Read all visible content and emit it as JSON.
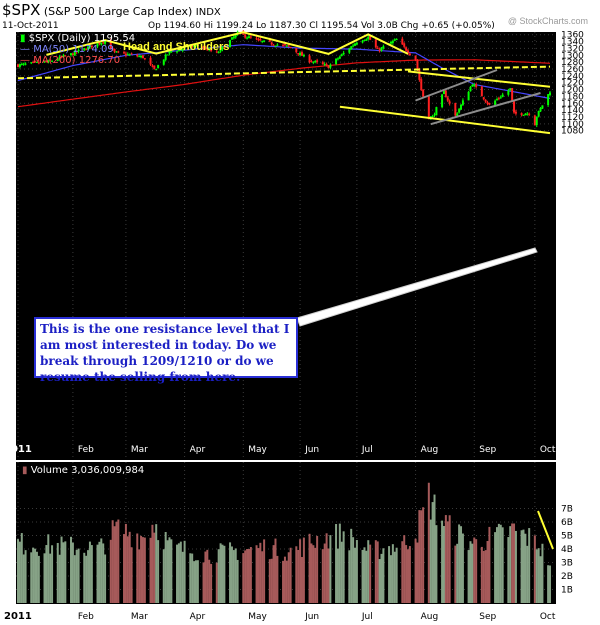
{
  "header": {
    "ticker": "$SPX",
    "name": "(S&P 500 Large Cap Index)",
    "exchange": "INDX",
    "date": "11-Oct-2011",
    "quote": "Op 1194.60  Hi 1199.24  Lo 1187.30  Cl 1195.54  Vol 3.0B  Chg +0.65 (+0.05%)",
    "watermark": "@ StockCharts.com"
  },
  "legend": {
    "price": "$SPX (Daily) 1195.54",
    "ma50": "MA(50) 1174.09",
    "ma200": "MA(200) 1276.70"
  },
  "annotations": {
    "pattern": "Head and Shoulders",
    "note": "This is the one resistance level that I am most interested in today. Do we break through 1209/1210 or do we resume the selling from here."
  },
  "volume_title": "Volume 3,036,009,984",
  "colors": {
    "background": "#000000",
    "up": "#00ff00",
    "down": "#ff2020",
    "ma50": "#4646ff",
    "ma200": "#e01010",
    "trendline": "#ffff33",
    "channel": "#8c8c8c",
    "volume_up": "#86a286",
    "volume_down": "#a65a5a"
  },
  "chart_data": [
    {
      "type": "line",
      "title": "$SPX (S&P 500 Large Cap Index) INDX",
      "ylim": [
        1060,
        1370
      ],
      "yticks": [
        1080,
        1100,
        1120,
        1140,
        1160,
        1180,
        1200,
        1220,
        1240,
        1260,
        1280,
        1300,
        1320,
        1340,
        1360
      ],
      "xlim": [
        "2011-01-03",
        "2011-10-11"
      ],
      "xticks": [
        {
          "label": "2011",
          "date": "2011-01-03"
        },
        {
          "label": "Feb",
          "date": "2011-02-01"
        },
        {
          "label": "Mar",
          "date": "2011-03-01"
        },
        {
          "label": "Apr",
          "date": "2011-04-01"
        },
        {
          "label": "May",
          "date": "2011-05-02"
        },
        {
          "label": "Jun",
          "date": "2011-06-01"
        },
        {
          "label": "Jul",
          "date": "2011-07-01"
        },
        {
          "label": "Aug",
          "date": "2011-08-01"
        },
        {
          "label": "Sep",
          "date": "2011-09-01"
        },
        {
          "label": "Oct",
          "date": "2011-10-03"
        }
      ],
      "grid": true,
      "series": [
        {
          "name": "$SPX (Daily) 1195.54",
          "points": [
            [
              "2011-01-03",
              1271
            ],
            [
              "2011-01-19",
              1281
            ],
            [
              "2011-02-01",
              1305
            ],
            [
              "2011-02-18",
              1343
            ],
            [
              "2011-02-23",
              1308
            ],
            [
              "2011-03-10",
              1295
            ],
            [
              "2011-03-16",
              1257
            ],
            [
              "2011-03-24",
              1310
            ],
            [
              "2011-04-08",
              1329
            ],
            [
              "2011-04-18",
              1305
            ],
            [
              "2011-04-29",
              1364
            ],
            [
              "2011-05-10",
              1342
            ],
            [
              "2011-05-26",
              1325
            ],
            [
              "2011-06-06",
              1285
            ],
            [
              "2011-06-16",
              1267
            ],
            [
              "2011-07-01",
              1340
            ],
            [
              "2011-07-07",
              1353
            ],
            [
              "2011-07-12",
              1314
            ],
            [
              "2011-07-22",
              1346
            ],
            [
              "2011-08-01",
              1287
            ],
            [
              "2011-08-04",
              1200
            ],
            [
              "2011-08-08",
              1119
            ],
            [
              "2011-08-10",
              1120
            ],
            [
              "2011-08-16",
              1193
            ],
            [
              "2011-08-22",
              1123
            ],
            [
              "2011-08-31",
              1218
            ],
            [
              "2011-09-09",
              1154
            ],
            [
              "2011-09-20",
              1202
            ],
            [
              "2011-09-22",
              1129
            ],
            [
              "2011-09-30",
              1131
            ],
            [
              "2011-10-03",
              1099
            ],
            [
              "2011-10-04",
              1123
            ],
            [
              "2011-10-07",
              1155
            ],
            [
              "2011-10-11",
              1195.54
            ]
          ]
        },
        {
          "name": "MA(50) 1174.09",
          "points": [
            [
              "2011-01-03",
              1226
            ],
            [
              "2011-02-01",
              1270
            ],
            [
              "2011-03-01",
              1300
            ],
            [
              "2011-04-01",
              1315
            ],
            [
              "2011-05-02",
              1331
            ],
            [
              "2011-06-01",
              1321
            ],
            [
              "2011-07-01",
              1318
            ],
            [
              "2011-08-01",
              1307
            ],
            [
              "2011-08-15",
              1263
            ],
            [
              "2011-09-01",
              1215
            ],
            [
              "2011-10-11",
              1174.09
            ]
          ]
        },
        {
          "name": "MA(200) 1276.70",
          "points": [
            [
              "2011-01-03",
              1150
            ],
            [
              "2011-02-01",
              1172
            ],
            [
              "2011-03-01",
              1193
            ],
            [
              "2011-04-01",
              1215
            ],
            [
              "2011-05-02",
              1242
            ],
            [
              "2011-06-01",
              1262
            ],
            [
              "2011-07-01",
              1278
            ],
            [
              "2011-08-01",
              1286
            ],
            [
              "2011-09-01",
              1287
            ],
            [
              "2011-10-11",
              1276.7
            ]
          ]
        }
      ],
      "trendlines": [
        {
          "name": "Head and Shoulders",
          "points": [
            [
              "2011-01-18",
              1301
            ],
            [
              "2011-02-18",
              1344
            ],
            [
              "2011-03-17",
              1305
            ],
            [
              "2011-05-02",
              1367
            ],
            [
              "2011-06-16",
              1304
            ],
            [
              "2011-07-07",
              1361
            ],
            [
              "2011-07-28",
              1304
            ]
          ]
        },
        {
          "name": "neckline",
          "points": [
            [
              "2011-01-03",
              1233
            ],
            [
              "2011-10-11",
              1267
            ]
          ]
        },
        {
          "name": "resistance",
          "points": [
            [
              "2011-07-28",
              1253
            ],
            [
              "2011-10-11",
              1208
            ]
          ]
        },
        {
          "name": "support",
          "points": [
            [
              "2011-06-22",
              1150
            ],
            [
              "2011-10-11",
              1073
            ]
          ]
        },
        {
          "name": "channel-upper",
          "points": [
            [
              "2011-08-01",
              1168
            ],
            [
              "2011-09-13",
              1257
            ]
          ]
        },
        {
          "name": "channel-lower",
          "points": [
            [
              "2011-08-09",
              1099
            ],
            [
              "2011-10-06",
              1190
            ]
          ]
        }
      ]
    },
    {
      "type": "bar",
      "title": "Volume 3,036,009,984",
      "ylim": [
        0,
        8
      ],
      "yticks": [
        {
          "v": 1,
          "label": "1B"
        },
        {
          "v": 2,
          "label": "2B"
        },
        {
          "v": 3,
          "label": "3B"
        },
        {
          "v": 4,
          "label": "4B"
        },
        {
          "v": 5,
          "label": "5B"
        },
        {
          "v": 6,
          "label": "6B"
        },
        {
          "v": 7,
          "label": "7B"
        }
      ],
      "unit": "billion shares",
      "profile": [
        [
          "2011-01-03",
          4.5
        ],
        [
          "2011-01-25",
          4.3
        ],
        [
          "2011-02-15",
          4.1
        ],
        [
          "2011-02-24",
          5.6
        ],
        [
          "2011-03-10",
          5.0
        ],
        [
          "2011-03-16",
          6.1
        ],
        [
          "2011-03-25",
          4.2
        ],
        [
          "2011-04-15",
          3.7
        ],
        [
          "2011-05-13",
          4.2
        ],
        [
          "2011-05-27",
          3.9
        ],
        [
          "2011-06-10",
          4.8
        ],
        [
          "2011-06-24",
          5.2
        ],
        [
          "2011-07-08",
          3.9
        ],
        [
          "2011-07-26",
          4.5
        ],
        [
          "2011-08-02",
          5.6
        ],
        [
          "2011-08-08",
          8.0
        ],
        [
          "2011-08-10",
          7.3
        ],
        [
          "2011-08-19",
          5.6
        ],
        [
          "2011-09-01",
          4.5
        ],
        [
          "2011-09-22",
          5.5
        ],
        [
          "2011-10-04",
          4.6
        ],
        [
          "2011-10-11",
          3.0
        ]
      ]
    }
  ]
}
